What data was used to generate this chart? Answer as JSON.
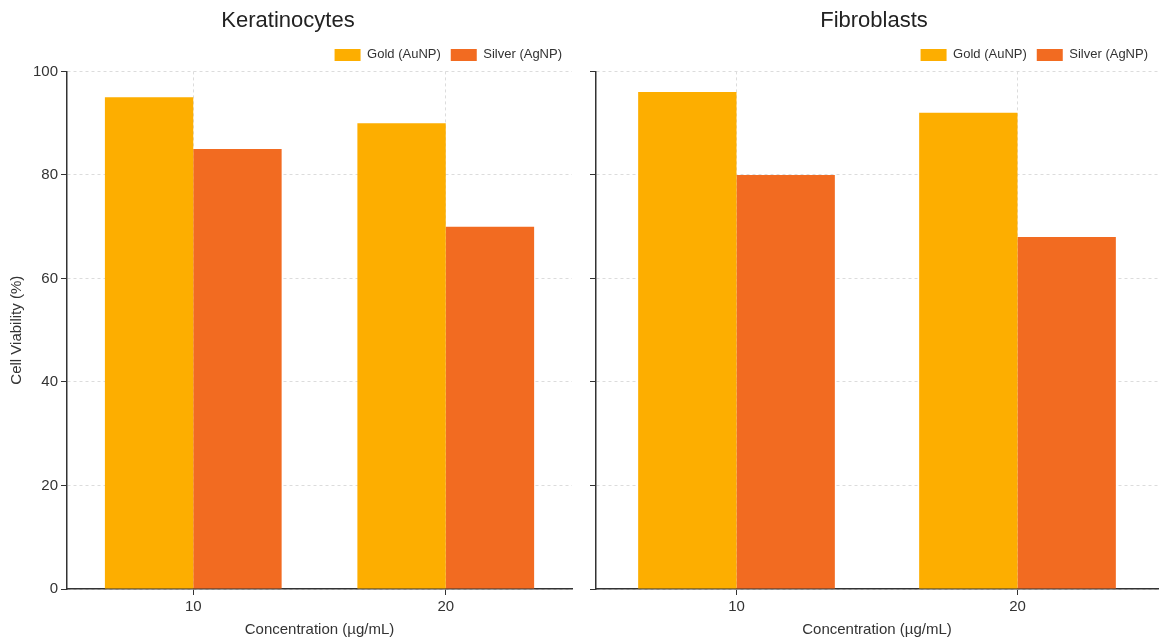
{
  "chart_data": [
    {
      "type": "bar",
      "title": "Keratinocytes",
      "xlabel": "Concentration (µg/mL)",
      "ylabel": "Cell Viability (%)",
      "categories": [
        "10",
        "20"
      ],
      "series": [
        {
          "name": "Gold (AuNP)",
          "color": "#fdae00",
          "values": [
            95,
            90
          ]
        },
        {
          "name": "Silver (AgNP)",
          "color": "#f26b21",
          "values": [
            85,
            70
          ]
        }
      ],
      "ylim": [
        0,
        100
      ],
      "yticks": [
        0,
        20,
        40,
        60,
        80,
        100
      ],
      "grid": true,
      "legend": "top right"
    },
    {
      "type": "bar",
      "title": "Fibroblasts",
      "xlabel": "Concentration (µg/mL)",
      "categories": [
        "10",
        "20"
      ],
      "series": [
        {
          "name": "Gold (AuNP)",
          "color": "#fdae00",
          "values": [
            96,
            92
          ]
        },
        {
          "name": "Silver (AgNP)",
          "color": "#f26b21",
          "values": [
            80,
            68
          ]
        }
      ],
      "ylim": [
        0,
        100
      ],
      "yticks": [
        0,
        20,
        40,
        60,
        80,
        100
      ],
      "grid": true,
      "legend": "top right",
      "tick_labels": "x"
    }
  ]
}
